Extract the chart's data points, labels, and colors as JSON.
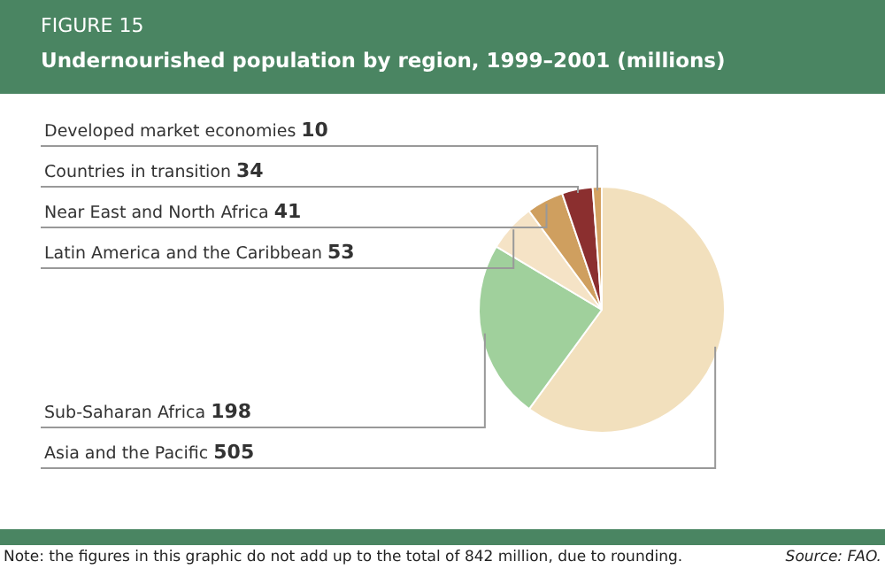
{
  "chart_data": {
    "type": "pie",
    "subtitle": "FIGURE 15",
    "title": "Undernourished population by region, 1999–2001 (millions)",
    "categories": [
      "Developed market economies",
      "Countries in transition",
      "Near East and North Africa",
      "Latin America and the Caribbean",
      "Sub-Saharan Africa",
      "Asia and the Pacific"
    ],
    "values": [
      10,
      34,
      41,
      53,
      198,
      505
    ],
    "colors": [
      "#d4a262",
      "#8b2f2f",
      "#cf9f5f",
      "#f5e3c6",
      "#a0d09c",
      "#f2e0bd"
    ],
    "data_labels": true,
    "annotations": [
      "Note: the figures in this graphic do not add up to the total of 842 million, due to rounding.",
      "Source: FAO."
    ]
  }
}
